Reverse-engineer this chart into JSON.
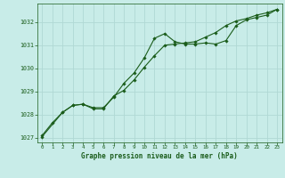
{
  "title": "Graphe pression niveau de la mer (hPa)",
  "background_color": "#c8ece8",
  "grid_color": "#b0d8d4",
  "line_color": "#1a5c1a",
  "marker_color": "#1a5c1a",
  "xlim": [
    -0.5,
    23.5
  ],
  "ylim": [
    1026.8,
    1032.8
  ],
  "xticks": [
    0,
    1,
    2,
    3,
    4,
    5,
    6,
    7,
    8,
    9,
    10,
    11,
    12,
    13,
    14,
    15,
    16,
    17,
    18,
    19,
    20,
    21,
    22,
    23
  ],
  "yticks": [
    1027,
    1028,
    1029,
    1030,
    1031,
    1032
  ],
  "series1_x": [
    0,
    1,
    2,
    3,
    4,
    5,
    6,
    7,
    8,
    9,
    10,
    11,
    12,
    13,
    14,
    15,
    16,
    17,
    18,
    19,
    20,
    21,
    22,
    23
  ],
  "series1_y": [
    1027.1,
    1027.65,
    1028.1,
    1028.4,
    1028.45,
    1028.3,
    1028.3,
    1028.75,
    1029.35,
    1029.8,
    1030.45,
    1031.3,
    1031.5,
    1031.15,
    1031.05,
    1031.05,
    1031.1,
    1031.05,
    1031.2,
    1031.85,
    1032.1,
    1032.2,
    1032.3,
    1032.55
  ],
  "series2_x": [
    0,
    2,
    3,
    4,
    5,
    6,
    7,
    8,
    9,
    10,
    11,
    12,
    13,
    14,
    15,
    16,
    17,
    18,
    19,
    20,
    21,
    22,
    23
  ],
  "series2_y": [
    1027.05,
    1028.1,
    1028.4,
    1028.45,
    1028.25,
    1028.25,
    1028.8,
    1029.05,
    1029.5,
    1030.05,
    1030.55,
    1031.0,
    1031.05,
    1031.1,
    1031.15,
    1031.35,
    1031.55,
    1031.85,
    1032.05,
    1032.15,
    1032.3,
    1032.4,
    1032.55
  ]
}
